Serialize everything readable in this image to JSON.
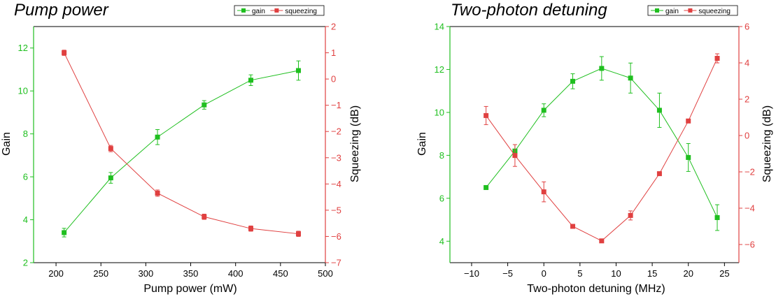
{
  "colors": {
    "gain": "#1fbf1f",
    "squeezing": "#e04040",
    "axis": "#000000"
  },
  "chart_data": [
    {
      "type": "line",
      "title": "Pump power",
      "xlabel": "Pump power (mW)",
      "ylabel": "Gain",
      "y2label": "Squeezing (dB)",
      "xlim": [
        175,
        500
      ],
      "ylim": [
        2,
        13
      ],
      "y2lim": [
        -7,
        2
      ],
      "xticks": [
        200,
        250,
        300,
        350,
        400,
        450,
        500
      ],
      "yticks": [
        2,
        4,
        6,
        8,
        10,
        12
      ],
      "y2ticks": [
        -7,
        -6,
        -5,
        -4,
        -3,
        -2,
        -1,
        0,
        1,
        2
      ],
      "legend_position": "top-right",
      "series": [
        {
          "name": "gain",
          "axis": "left",
          "marker": "square",
          "x": [
            209,
            261,
            313,
            365,
            417,
            470
          ],
          "y": [
            3.4,
            5.95,
            7.85,
            9.35,
            10.5,
            10.95
          ],
          "err": [
            0.2,
            0.25,
            0.35,
            0.2,
            0.25,
            0.45
          ]
        },
        {
          "name": "squeezing",
          "axis": "right",
          "marker": "square",
          "x": [
            209,
            261,
            313,
            365,
            417,
            470
          ],
          "y": [
            1.0,
            -2.65,
            -4.35,
            -5.25,
            -5.7,
            -5.9
          ],
          "err": [
            0.1,
            0.12,
            0.12,
            0.1,
            0.1,
            0.1
          ]
        }
      ]
    },
    {
      "type": "line",
      "title": "Two-photon detuning",
      "xlabel": "Two-photon detuning (MHz)",
      "ylabel": "Gain",
      "y2label": "Squeezing (dB)",
      "xlim": [
        -13,
        27
      ],
      "ylim": [
        3,
        14
      ],
      "y2lim": [
        -7,
        6
      ],
      "xticks": [
        -10,
        -5,
        0,
        5,
        10,
        15,
        20,
        25
      ],
      "yticks": [
        4,
        6,
        8,
        10,
        12,
        14
      ],
      "y2ticks": [
        -6,
        -4,
        -2,
        0,
        2,
        4,
        6
      ],
      "legend_position": "top-right",
      "series": [
        {
          "name": "gain",
          "axis": "left",
          "marker": "square",
          "x": [
            -8,
            -4,
            0,
            4,
            8,
            12,
            16,
            20,
            24
          ],
          "y": [
            6.5,
            8.2,
            10.1,
            11.45,
            12.05,
            11.6,
            10.1,
            7.9,
            5.1
          ],
          "err": [
            0.05,
            0.3,
            0.3,
            0.35,
            0.55,
            0.7,
            0.8,
            0.65,
            0.6
          ]
        },
        {
          "name": "squeezing",
          "axis": "right",
          "marker": "square",
          "x": [
            -8,
            -4,
            0,
            4,
            8,
            12,
            16,
            20,
            24
          ],
          "y": [
            1.1,
            -1.1,
            -3.1,
            -5.0,
            -5.8,
            -4.4,
            -2.1,
            0.8,
            4.25
          ],
          "err": [
            0.5,
            0.6,
            0.55,
            0.1,
            0.1,
            0.25,
            0.1,
            0.1,
            0.25
          ]
        }
      ]
    }
  ]
}
